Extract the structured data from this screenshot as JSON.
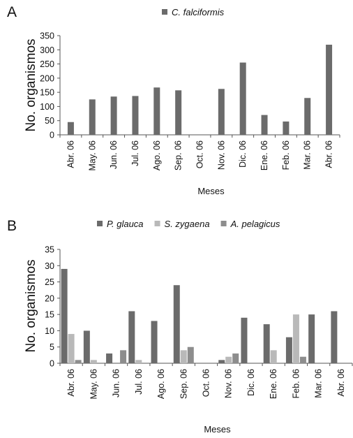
{
  "colors": {
    "series_dark": "#6b6b6b",
    "series_light": "#b9b9b9",
    "series_mid": "#8d8d8d",
    "axis": "#555555"
  },
  "chart_data": [
    {
      "panel_label": "A",
      "type": "bar",
      "categories": [
        "Abr. 06",
        "May. 06",
        "Jun. 06",
        "Jul. 06",
        "Ago. 06",
        "Sep. 06",
        "Oct. 06",
        "Nov. 06",
        "Dic. 06",
        "Ene. 06",
        "Feb. 06",
        "Mar. 06",
        "Abr. 06"
      ],
      "series": [
        {
          "name": "C. falciformis",
          "values": [
            45,
            125,
            135,
            137,
            167,
            157,
            0,
            162,
            255,
            70,
            47,
            130,
            318
          ]
        }
      ],
      "xlabel": "Meses",
      "ylabel": "No. organismos",
      "ylim": [
        0,
        350
      ],
      "yticks": [
        0,
        50,
        100,
        150,
        200,
        250,
        300,
        350
      ],
      "grid": false,
      "legend": "top"
    },
    {
      "panel_label": "B",
      "type": "bar",
      "categories": [
        "Abr. 06",
        "May. 06",
        "Jun. 06",
        "Jul. 06",
        "Ago. 06",
        "Sep. 06",
        "Oct. 06",
        "Nov. 06",
        "Dic. 06",
        "Ene. 06",
        "Feb. 06",
        "Mar. 06",
        "Abr. 06"
      ],
      "series": [
        {
          "name": "P. glauca",
          "values": [
            29,
            10,
            3,
            16,
            13,
            24,
            0,
            1,
            14,
            12,
            8,
            15,
            16
          ]
        },
        {
          "name": "S. zygaena",
          "values": [
            9,
            1,
            0,
            1,
            0,
            4,
            0,
            2,
            0,
            4,
            15,
            0,
            0
          ]
        },
        {
          "name": "A. pelagicus",
          "values": [
            1,
            0,
            4,
            0,
            0,
            5,
            0,
            3,
            0,
            0,
            2,
            0,
            0
          ]
        }
      ],
      "xlabel": "Meses",
      "ylabel": "No. organismos",
      "ylim": [
        0,
        35
      ],
      "yticks": [
        0,
        5,
        10,
        15,
        20,
        25,
        30,
        35
      ],
      "grid": false,
      "legend": "top"
    }
  ]
}
